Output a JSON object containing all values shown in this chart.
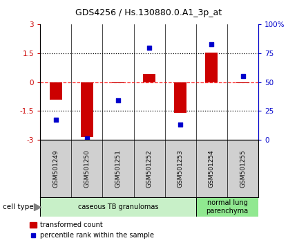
{
  "title": "GDS4256 / Hs.130880.0.A1_3p_at",
  "samples": [
    "GSM501249",
    "GSM501250",
    "GSM501251",
    "GSM501252",
    "GSM501253",
    "GSM501254",
    "GSM501255"
  ],
  "transformed_count": [
    -0.9,
    -2.85,
    -0.05,
    0.4,
    -1.6,
    1.55,
    -0.05
  ],
  "percentile_rank": [
    17,
    1,
    34,
    80,
    13,
    83,
    55
  ],
  "ylim_left": [
    -3,
    3
  ],
  "ylim_right": [
    0,
    100
  ],
  "yticks_left": [
    -3,
    -1.5,
    0,
    1.5,
    3
  ],
  "yticks_right": [
    0,
    25,
    50,
    75,
    100
  ],
  "ytick_labels_left": [
    "-3",
    "-1.5",
    "0",
    "1.5",
    "3"
  ],
  "ytick_labels_right": [
    "0",
    "25",
    "50",
    "75",
    "100%"
  ],
  "hlines_dotted": [
    -1.5,
    1.5
  ],
  "hline_dashed": 0,
  "cell_groups": [
    {
      "label": "caseous TB granulomas",
      "samples": [
        0,
        1,
        2,
        3,
        4
      ],
      "color": "#c8f0c8"
    },
    {
      "label": "normal lung\nparenchyma",
      "samples": [
        5,
        6
      ],
      "color": "#90e890"
    }
  ],
  "bar_color": "#cc0000",
  "scatter_color": "#0000cc",
  "bar_width": 0.4,
  "legend_bar_label": "transformed count",
  "legend_scatter_label": "percentile rank within the sample",
  "cell_type_label": "cell type",
  "background_color": "#ffffff",
  "tick_label_color_left": "#cc0000",
  "tick_label_color_right": "#0000cc",
  "sample_box_color": "#d0d0d0",
  "grid_color": "#000000"
}
